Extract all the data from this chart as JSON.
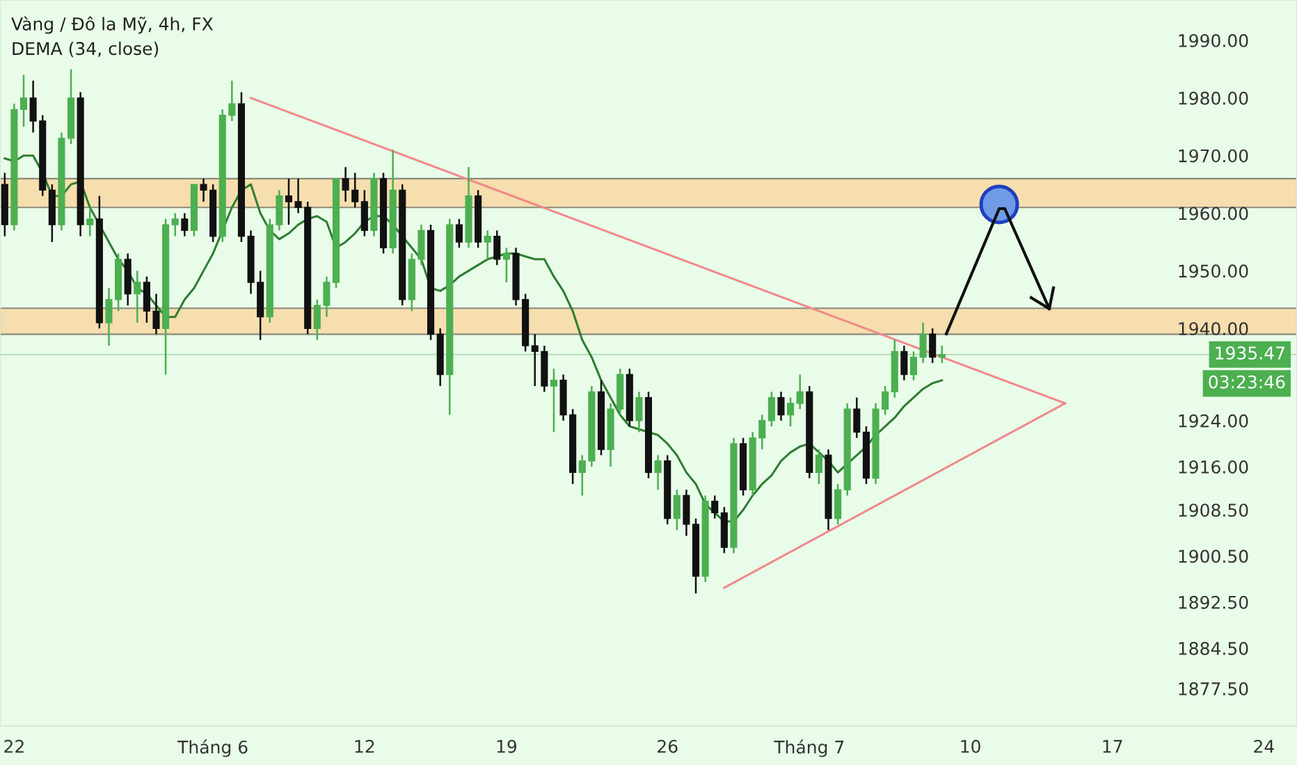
{
  "chart_data": {
    "type": "candlestick",
    "title": "Vàng / Đô la Mỹ, 4h, FX",
    "subtitle": "DEMA (34, close)",
    "categories": [
      null,
      "22",
      null,
      null,
      null,
      null,
      null,
      null,
      null,
      null,
      null,
      null,
      null,
      null,
      null,
      null,
      null,
      null,
      null,
      null,
      null,
      null,
      "Tháng 6",
      null,
      null,
      null,
      null,
      null,
      null,
      null,
      null,
      null,
      null,
      null,
      null,
      null,
      null,
      null,
      "12",
      null,
      null,
      null,
      null,
      null,
      null,
      null,
      null,
      null,
      null,
      null,
      null,
      null,
      null,
      "19",
      null,
      null,
      null,
      null,
      null,
      null,
      null,
      null,
      null,
      null,
      null,
      null,
      null,
      null,
      null,
      null,
      "26",
      null,
      null,
      null,
      null,
      null,
      null,
      null,
      null,
      null,
      null,
      null,
      null,
      null,
      null,
      "Tháng 7",
      null,
      null,
      null,
      null,
      null,
      null,
      null,
      null,
      null,
      null,
      null,
      null,
      null,
      null,
      null,
      null,
      "10",
      null,
      null,
      null,
      null,
      null,
      null,
      null,
      null,
      null,
      null,
      null,
      null,
      null,
      null,
      "17",
      null,
      null,
      null,
      null,
      null,
      null,
      null,
      null,
      null,
      null,
      null,
      null,
      null,
      null,
      null,
      "24",
      null,
      null,
      null
    ],
    "ohlc": [
      [
        1965,
        1967,
        1956,
        1958
      ],
      [
        1958,
        1979,
        1957,
        1978
      ],
      [
        1978,
        1984,
        1975,
        1980
      ],
      [
        1980,
        1983,
        1974,
        1976
      ],
      [
        1976,
        1977,
        1963,
        1964
      ],
      [
        1964,
        1965,
        1955,
        1958
      ],
      [
        1958,
        1974,
        1957,
        1973
      ],
      [
        1973,
        1985,
        1972,
        1980
      ],
      [
        1980,
        1981,
        1956,
        1958
      ],
      [
        1958,
        1961,
        1956,
        1959
      ],
      [
        1959,
        1963,
        1940,
        1941
      ],
      [
        1941,
        1947,
        1937,
        1945
      ],
      [
        1945,
        1953,
        1943,
        1952
      ],
      [
        1952,
        1953,
        1944,
        1946
      ],
      [
        1946,
        1950,
        1941,
        1948
      ],
      [
        1948,
        1949,
        1941,
        1943
      ],
      [
        1943,
        1946,
        1939,
        1940
      ],
      [
        1940,
        1959,
        1932,
        1958
      ],
      [
        1958,
        1960,
        1956,
        1959
      ],
      [
        1959,
        1960,
        1956,
        1957
      ],
      [
        1957,
        1965,
        1956,
        1965
      ],
      [
        1965,
        1966,
        1962,
        1964
      ],
      [
        1964,
        1965,
        1955,
        1956
      ],
      [
        1956,
        1978,
        1955,
        1977
      ],
      [
        1977,
        1983,
        1976,
        1979
      ],
      [
        1979,
        1981,
        1955,
        1956
      ],
      [
        1956,
        1957,
        1946,
        1948
      ],
      [
        1948,
        1950,
        1938,
        1942
      ],
      [
        1942,
        1959,
        1941,
        1958
      ],
      [
        1958,
        1964,
        1957,
        1963
      ],
      [
        1963,
        1966,
        1958,
        1962
      ],
      [
        1962,
        1966,
        1960,
        1961
      ],
      [
        1961,
        1962,
        1939,
        1940
      ],
      [
        1940,
        1945,
        1938,
        1944
      ],
      [
        1944,
        1949,
        1942,
        1948
      ],
      [
        1948,
        1966,
        1947,
        1966
      ],
      [
        1966,
        1968,
        1962,
        1964
      ],
      [
        1964,
        1967,
        1961,
        1962
      ],
      [
        1962,
        1964,
        1956,
        1957
      ],
      [
        1957,
        1967,
        1956,
        1966
      ],
      [
        1966,
        1967,
        1953,
        1954
      ],
      [
        1954,
        1971,
        1953,
        1964
      ],
      [
        1964,
        1965,
        1944,
        1945
      ],
      [
        1945,
        1953,
        1943,
        1952
      ],
      [
        1952,
        1958,
        1951,
        1957
      ],
      [
        1957,
        1958,
        1938,
        1939
      ],
      [
        1939,
        1940,
        1930,
        1932
      ],
      [
        1932,
        1959,
        1925,
        1958
      ],
      [
        1958,
        1959,
        1954,
        1955
      ],
      [
        1955,
        1968,
        1954,
        1963
      ],
      [
        1963,
        1964,
        1954,
        1955
      ],
      [
        1955,
        1957,
        1952,
        1956
      ],
      [
        1956,
        1957,
        1951,
        1952
      ],
      [
        1952,
        1954,
        1948,
        1953
      ],
      [
        1953,
        1954,
        1944,
        1945
      ],
      [
        1945,
        1946,
        1936,
        1937
      ],
      [
        1937,
        1939,
        1930,
        1936
      ],
      [
        1936,
        1937,
        1929,
        1930
      ],
      [
        1930,
        1933,
        1922,
        1931
      ],
      [
        1931,
        1932,
        1924,
        1925
      ],
      [
        1925,
        1926,
        1913,
        1915
      ],
      [
        1915,
        1918,
        1911,
        1917
      ],
      [
        1917,
        1930,
        1916,
        1929
      ],
      [
        1929,
        1931,
        1918,
        1919
      ],
      [
        1919,
        1927,
        1916,
        1926
      ],
      [
        1926,
        1933,
        1925,
        1932
      ],
      [
        1932,
        1933,
        1923,
        1924
      ],
      [
        1924,
        1929,
        1922,
        1928
      ],
      [
        1928,
        1929,
        1914,
        1915
      ],
      [
        1915,
        1918,
        1912,
        1917
      ],
      [
        1917,
        1918,
        1906,
        1907
      ],
      [
        1907,
        1912,
        1905,
        1911
      ],
      [
        1911,
        1912,
        1904,
        1906
      ],
      [
        1906,
        1907,
        1894,
        1897
      ],
      [
        1897,
        1911,
        1896,
        1910
      ],
      [
        1910,
        1911,
        1907,
        1908
      ],
      [
        1908,
        1909,
        1901,
        1902
      ],
      [
        1902,
        1921,
        1901,
        1920
      ],
      [
        1920,
        1921,
        1911,
        1912
      ],
      [
        1912,
        1922,
        1911,
        1921
      ],
      [
        1921,
        1925,
        1919,
        1924
      ],
      [
        1924,
        1929,
        1923,
        1928
      ],
      [
        1928,
        1929,
        1924,
        1925
      ],
      [
        1925,
        1928,
        1923,
        1927
      ],
      [
        1927,
        1932,
        1926,
        1929
      ],
      [
        1929,
        1930,
        1914,
        1915
      ],
      [
        1915,
        1919,
        1913,
        1918
      ],
      [
        1918,
        1919,
        1905,
        1907
      ],
      [
        1907,
        1913,
        1906,
        1912
      ],
      [
        1912,
        1927,
        1911,
        1926
      ],
      [
        1926,
        1928,
        1921,
        1922
      ],
      [
        1922,
        1923,
        1913,
        1914
      ],
      [
        1914,
        1927,
        1913,
        1926
      ],
      [
        1926,
        1930,
        1925,
        1929
      ],
      [
        1929,
        1938,
        1928,
        1936
      ],
      [
        1936,
        1937,
        1931,
        1932
      ],
      [
        1932,
        1936,
        1931,
        1935
      ],
      [
        1935,
        1941,
        1934,
        1939
      ],
      [
        1939,
        1940,
        1934,
        1935
      ],
      [
        1935,
        1937,
        1934,
        1935.47
      ],
      null,
      null,
      null,
      null,
      null,
      null,
      null,
      null,
      null,
      null,
      null,
      null,
      null,
      null,
      null,
      null,
      null,
      null,
      null,
      null,
      null,
      null,
      null,
      null,
      null,
      null,
      null,
      null,
      null,
      null,
      null,
      null,
      null,
      null,
      null,
      null,
      null
    ],
    "colors": [
      "#111111",
      "#4caf50",
      "#4caf50",
      "#111111",
      "#111111",
      "#111111",
      "#4caf50",
      "#4caf50",
      "#111111",
      "#4caf50",
      "#111111",
      "#4caf50",
      "#4caf50",
      "#111111",
      "#4caf50",
      "#111111",
      "#111111",
      "#4caf50",
      "#4caf50",
      "#111111",
      "#4caf50",
      "#111111",
      "#111111",
      "#4caf50",
      "#4caf50",
      "#111111",
      "#111111",
      "#111111",
      "#4caf50",
      "#4caf50",
      "#111111",
      "#111111",
      "#111111",
      "#4caf50",
      "#4caf50",
      "#4caf50",
      "#111111",
      "#111111",
      "#111111",
      "#4caf50",
      "#111111",
      "#4caf50",
      "#111111",
      "#4caf50",
      "#4caf50",
      "#111111",
      "#111111",
      "#4caf50",
      "#111111",
      "#4caf50",
      "#111111",
      "#4caf50",
      "#111111",
      "#4caf50",
      "#111111",
      "#111111",
      "#111111",
      "#111111",
      "#4caf50",
      "#111111",
      "#111111",
      "#4caf50",
      "#4caf50",
      "#111111",
      "#4caf50",
      "#4caf50",
      "#111111",
      "#4caf50",
      "#111111",
      "#4caf50",
      "#111111",
      "#4caf50",
      "#111111",
      "#111111",
      "#4caf50",
      "#111111",
      "#111111",
      "#4caf50",
      "#111111",
      "#4caf50",
      "#4caf50",
      "#4caf50",
      "#111111",
      "#4caf50",
      "#4caf50",
      "#111111",
      "#4caf50",
      "#111111",
      "#4caf50",
      "#4caf50",
      "#111111",
      "#111111",
      "#4caf50",
      "#4caf50",
      "#4caf50",
      "#111111",
      "#4caf50",
      "#4caf50",
      "#111111",
      "#4caf50",
      null,
      null,
      null,
      null,
      null,
      null,
      null,
      null,
      null,
      null,
      null,
      null,
      null,
      null,
      null,
      null,
      null,
      null,
      null,
      null,
      null,
      null,
      null,
      null,
      null,
      null,
      null,
      null,
      null,
      null,
      null,
      null,
      null,
      null,
      null,
      null,
      null
    ],
    "series": [
      {
        "type": "line",
        "color": "#2e7d32",
        "values": [
          1969.5,
          1969,
          1970,
          1970,
          1967,
          1963,
          1963,
          1965,
          1965.5,
          1961,
          1958,
          1955,
          1952,
          1950,
          1947,
          1946,
          1944,
          1942,
          1942,
          1945,
          1947,
          1950,
          1953,
          1957,
          1961,
          1964,
          1965,
          1960,
          1957,
          1955.5,
          1956.5,
          1958,
          1959,
          1959.5,
          1958.5,
          1954,
          1955,
          1956.5,
          1958.5,
          1959.5,
          1959.5,
          1958,
          1956,
          1954,
          1952,
          1947,
          1946.5,
          1947.5,
          1949,
          1950,
          1951,
          1952,
          1952.5,
          1953,
          1953,
          1952.5,
          1952,
          1952,
          1949,
          1946.5,
          1943,
          1938,
          1935,
          1931,
          1928,
          1925,
          1923,
          1922.5,
          1922,
          1921.5,
          1920,
          1918,
          1915,
          1913,
          1909.5,
          1908,
          1906.5,
          1906.5,
          1908.5,
          1911,
          1913,
          1914.5,
          1917,
          1918.5,
          1919.5,
          1920,
          1918.5,
          1917,
          1915,
          1916.5,
          1918,
          1919.5,
          1921.5,
          1923,
          1924.5,
          1926.5,
          1928,
          1929.5,
          1930.5,
          1931,
          null,
          null,
          null,
          null,
          null,
          null,
          null,
          null,
          null,
          null,
          null,
          null,
          null,
          null,
          null,
          null,
          null,
          null,
          null,
          null,
          null,
          null,
          null,
          null,
          null,
          null,
          null,
          null,
          null,
          null,
          null,
          null,
          null,
          null,
          null,
          null,
          null
        ]
      },
      {
        "type": "line",
        "color": "#f08a8a",
        "values": [
          null,
          null,
          null,
          null,
          null,
          null,
          null,
          null,
          null,
          null,
          null,
          null,
          null,
          null,
          null,
          null,
          null,
          null,
          null,
          null,
          null,
          null,
          null,
          null,
          null,
          null,
          1980,
          null,
          null,
          null,
          null,
          null,
          null,
          null,
          null,
          null,
          null,
          null,
          null,
          null,
          null,
          null,
          null,
          null,
          null,
          null,
          null,
          null,
          null,
          null,
          null,
          null,
          null,
          null,
          null,
          null,
          null,
          null,
          null,
          null,
          null,
          null,
          null,
          null,
          null,
          null,
          null,
          null,
          null,
          null,
          null,
          null,
          null,
          null,
          null,
          null,
          null,
          null,
          null,
          null,
          null,
          null,
          null,
          null,
          null,
          null,
          null,
          null,
          null,
          null,
          null,
          null,
          null,
          null,
          null,
          null,
          null,
          null,
          null,
          null,
          null,
          null,
          null,
          null,
          null,
          null,
          null,
          null,
          null,
          null,
          null,
          null,
          1927,
          null,
          null,
          null,
          null,
          null,
          null,
          null,
          null,
          null,
          null,
          null,
          null,
          null,
          null,
          null,
          null,
          null,
          null,
          null,
          null,
          null,
          null,
          null,
          null
        ]
      },
      {
        "type": "line",
        "color": "#f08a8a",
        "values": [
          null,
          null,
          null,
          null,
          null,
          null,
          null,
          null,
          null,
          null,
          null,
          null,
          null,
          null,
          null,
          null,
          null,
          null,
          null,
          null,
          null,
          null,
          null,
          null,
          null,
          null,
          null,
          null,
          null,
          null,
          null,
          null,
          null,
          null,
          null,
          null,
          null,
          null,
          null,
          null,
          null,
          null,
          null,
          null,
          null,
          null,
          null,
          null,
          null,
          null,
          null,
          null,
          null,
          null,
          null,
          null,
          null,
          null,
          null,
          null,
          null,
          null,
          null,
          null,
          null,
          null,
          null,
          null,
          null,
          null,
          null,
          null,
          null,
          null,
          null,
          null,
          1895,
          null,
          null,
          null,
          null,
          null,
          null,
          null,
          null,
          null,
          null,
          null,
          null,
          null,
          null,
          null,
          null,
          null,
          null,
          null,
          null,
          null,
          null,
          null,
          null,
          null,
          null,
          null,
          null,
          null,
          null,
          null,
          null,
          null,
          null,
          null,
          1927,
          null,
          null,
          null,
          null,
          null,
          null,
          null,
          null,
          null,
          null,
          null,
          null,
          null,
          null,
          null,
          null,
          null,
          null,
          null,
          null,
          null,
          null,
          null,
          null
        ]
      }
    ],
    "ylim": [
      1871,
      1997
    ],
    "yticks": [
      {
        "value": 1877.5,
        "label": "1877.50"
      },
      {
        "value": 1884.5,
        "label": "1884.50"
      },
      {
        "value": 1892.5,
        "label": "1892.50"
      },
      {
        "value": 1900.5,
        "label": "1900.50"
      },
      {
        "value": 1908.5,
        "label": "1908.50"
      },
      {
        "value": 1916,
        "label": "1916.00"
      },
      {
        "value": 1924,
        "label": "1924.00"
      },
      {
        "value": 1940,
        "label": "1940.00"
      },
      {
        "value": 1950,
        "label": "1950.00"
      },
      {
        "value": 1960,
        "label": "1960.00"
      },
      {
        "value": 1970,
        "label": "1970.00"
      },
      {
        "value": 1980,
        "label": "1980.00"
      },
      {
        "value": 1990,
        "label": "1990.00"
      }
    ],
    "bands": [
      {
        "axis": "y",
        "from": 1961,
        "to": 1966,
        "color": "#f6deae"
      },
      {
        "axis": "y",
        "from": 1939,
        "to": 1943.5,
        "color": "#f6deae"
      }
    ],
    "ref_lines": [
      {
        "axis": "y",
        "value": 1935.47,
        "label": "1935.47",
        "color": "#4caf50"
      }
    ],
    "annotations": [
      "03:23:46"
    ]
  }
}
